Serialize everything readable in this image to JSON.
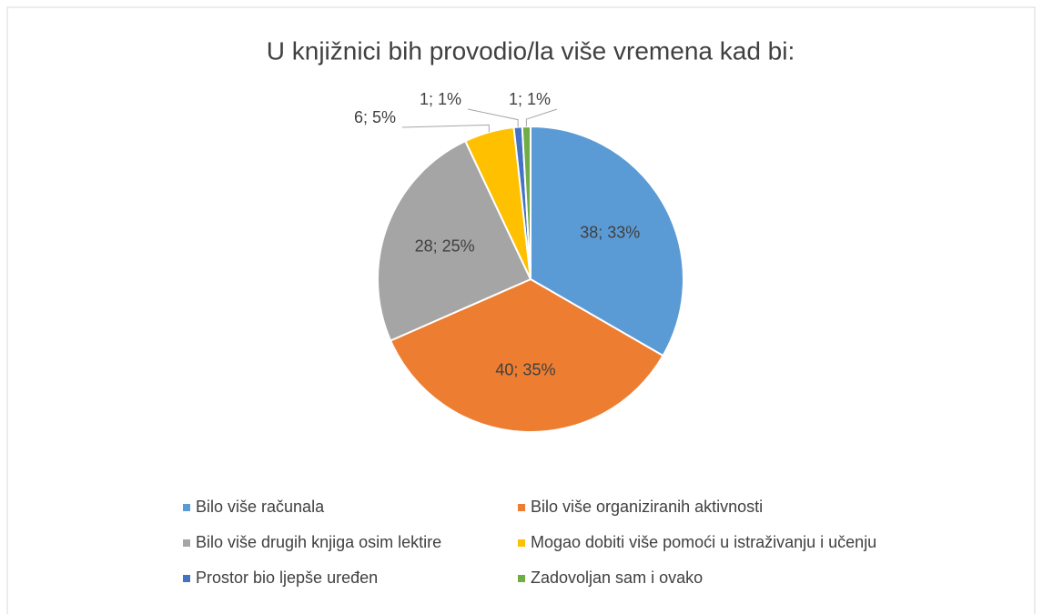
{
  "chart_data": {
    "type": "pie",
    "title": "U knjižnici bih provodio/la više vremena kad bi:",
    "categories": [
      "Bilo više računala",
      "Bilo više organiziranih aktivnosti",
      "Bilo više drugih knjiga osim lektire",
      "Mogao dobiti više pomoći u istraživanju i učenju",
      "Prostor bio ljepše uređen",
      "Zadovoljan sam i ovako"
    ],
    "values": [
      38,
      40,
      28,
      6,
      1,
      1
    ],
    "value_labels": [
      "38; 33%",
      "40; 35%",
      "28; 25%",
      "6; 5%",
      "1; 1%",
      "1; 1%"
    ],
    "colors": [
      "#5b9bd5",
      "#ed7d31",
      "#a5a5a5",
      "#ffc000",
      "#4472c4",
      "#70ad47"
    ],
    "legend": "bottom"
  }
}
